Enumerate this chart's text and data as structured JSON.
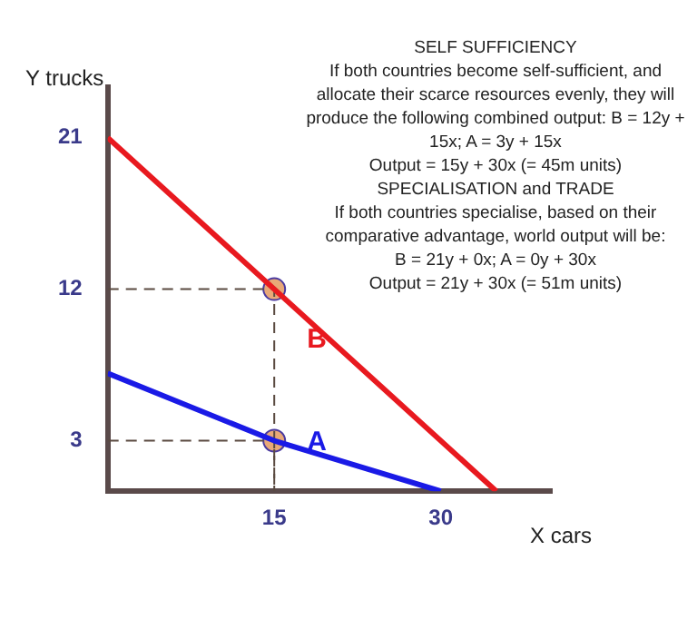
{
  "chart_data": {
    "type": "line",
    "xlabel": "X cars",
    "ylabel": "Y trucks",
    "xlim": [
      0,
      40
    ],
    "xticks": [
      15,
      30
    ],
    "ylim": [
      0,
      24
    ],
    "yticks": [
      3,
      12,
      21
    ],
    "grid": false,
    "legend": false,
    "marker": "none",
    "series": [
      {
        "name": "B",
        "color": "#e8191f",
        "x": [
          0,
          15,
          35
        ],
        "values": [
          21,
          12,
          0
        ]
      },
      {
        "name": "A",
        "color": "#1a1ae6",
        "x": [
          0,
          15,
          30
        ],
        "values": [
          7,
          3,
          0
        ]
      },
      {
        "type": "line",
        "line_style": "dashed",
        "color": "#5a4a40",
        "x": [
          0,
          15,
          15
        ],
        "values": [
          12,
          12,
          0
        ]
      },
      {
        "type": "line",
        "line_style": "dashed",
        "color": "#5a4a40",
        "x": [
          0,
          15,
          15
        ],
        "values": [
          3,
          3,
          0
        ]
      },
      {
        "type": "scatter",
        "marker": "circle",
        "color": "#e8a878",
        "x": [
          15,
          15
        ],
        "values": [
          12,
          3
        ]
      }
    ],
    "annotations": [
      "SELF SUFFICIENCY",
      "If both countries become self-sufficient, and allocate their scarce resources evenly, they will produce the following combined output: B = 12y + 15x;  A = 3y + 15x",
      "Output = 15y + 30x (= 45m units)",
      "SPECIALISATION and TRADE",
      "If both countries specialise, based on their comparative advantage, world output will be:",
      "B = 21y + 0x; A = 0y + 30x",
      "Output = 21y + 30x (= 51m units)"
    ]
  }
}
